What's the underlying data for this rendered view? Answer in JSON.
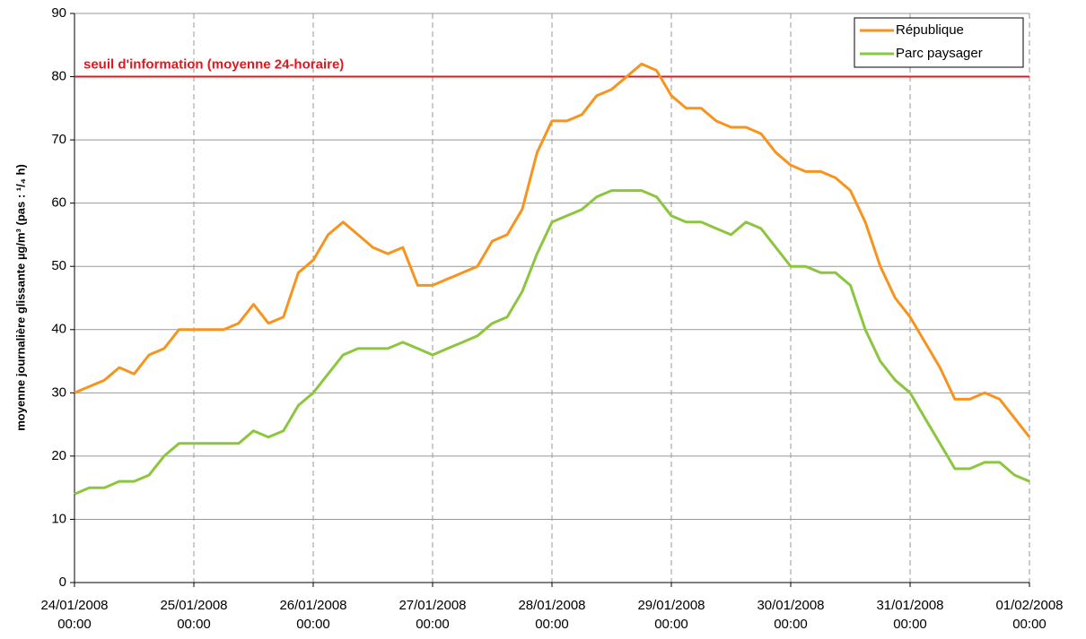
{
  "chart_data": {
    "type": "line",
    "y_label": "moyenne journalière glissante µg/m³ (pas : ¹/₄ h)",
    "annotation": {
      "text": "seuil d'information (moyenne 24-horaire)",
      "value": 80,
      "color": "#e8141c"
    },
    "x": [
      "2008-01-24 00:00",
      "2008-01-24 03:00",
      "2008-01-24 06:00",
      "2008-01-24 09:00",
      "2008-01-24 12:00",
      "2008-01-24 15:00",
      "2008-01-24 18:00",
      "2008-01-24 21:00",
      "2008-01-25 00:00",
      "2008-01-25 03:00",
      "2008-01-25 06:00",
      "2008-01-25 09:00",
      "2008-01-25 12:00",
      "2008-01-25 15:00",
      "2008-01-25 18:00",
      "2008-01-25 21:00",
      "2008-01-26 00:00",
      "2008-01-26 03:00",
      "2008-01-26 06:00",
      "2008-01-26 09:00",
      "2008-01-26 12:00",
      "2008-01-26 15:00",
      "2008-01-26 18:00",
      "2008-01-26 21:00",
      "2008-01-27 00:00",
      "2008-01-27 03:00",
      "2008-01-27 06:00",
      "2008-01-27 09:00",
      "2008-01-27 12:00",
      "2008-01-27 15:00",
      "2008-01-27 18:00",
      "2008-01-27 21:00",
      "2008-01-28 00:00",
      "2008-01-28 03:00",
      "2008-01-28 06:00",
      "2008-01-28 09:00",
      "2008-01-28 12:00",
      "2008-01-28 15:00",
      "2008-01-28 18:00",
      "2008-01-28 21:00",
      "2008-01-29 00:00",
      "2008-01-29 03:00",
      "2008-01-29 06:00",
      "2008-01-29 09:00",
      "2008-01-29 12:00",
      "2008-01-29 15:00",
      "2008-01-29 18:00",
      "2008-01-29 21:00",
      "2008-01-30 00:00",
      "2008-01-30 03:00",
      "2008-01-30 06:00",
      "2008-01-30 09:00",
      "2008-01-30 12:00",
      "2008-01-30 15:00",
      "2008-01-30 18:00",
      "2008-01-30 21:00",
      "2008-01-31 00:00",
      "2008-01-31 03:00",
      "2008-01-31 06:00",
      "2008-01-31 09:00",
      "2008-01-31 12:00",
      "2008-01-31 15:00",
      "2008-01-31 18:00",
      "2008-01-31 21:00",
      "2008-02-01 00:00"
    ],
    "series": [
      {
        "name": "République",
        "color": "#f7941d",
        "values": [
          30,
          31,
          32,
          34,
          33,
          36,
          37,
          40,
          40,
          40,
          40,
          41,
          44,
          41,
          42,
          49,
          51,
          55,
          57,
          55,
          53,
          52,
          53,
          47,
          47,
          48,
          49,
          50,
          54,
          55,
          59,
          68,
          73,
          73,
          74,
          77,
          78,
          80,
          82,
          81,
          77,
          75,
          75,
          73,
          72,
          72,
          71,
          68,
          66,
          65,
          65,
          64,
          62,
          57,
          50,
          45,
          42,
          38,
          34,
          29,
          29,
          30,
          29,
          26,
          23
        ]
      },
      {
        "name": "Parc paysager",
        "color": "#8cc63f",
        "values": [
          14,
          15,
          15,
          16,
          16,
          17,
          20,
          22,
          22,
          22,
          22,
          22,
          24,
          23,
          24,
          28,
          30,
          33,
          36,
          37,
          37,
          37,
          38,
          37,
          36,
          37,
          38,
          39,
          41,
          42,
          46,
          52,
          57,
          58,
          59,
          61,
          62,
          62,
          62,
          61,
          58,
          57,
          57,
          56,
          55,
          57,
          56,
          53,
          50,
          50,
          49,
          49,
          47,
          40,
          35,
          32,
          30,
          26,
          22,
          18,
          18,
          19,
          19,
          17,
          16
        ]
      }
    ],
    "xlim": [
      "2008-01-24 00:00",
      "2008-02-01 00:00"
    ],
    "xticks": [
      {
        "value": "2008-01-24 00:00",
        "label": "24/01/2008 00:00"
      },
      {
        "value": "2008-01-25 00:00",
        "label": "25/01/2008 00:00"
      },
      {
        "value": "2008-01-26 00:00",
        "label": "26/01/2008 00:00"
      },
      {
        "value": "2008-01-27 00:00",
        "label": "27/01/2008 00:00"
      },
      {
        "value": "2008-01-28 00:00",
        "label": "28/01/2008 00:00"
      },
      {
        "value": "2008-01-29 00:00",
        "label": "29/01/2008 00:00"
      },
      {
        "value": "2008-01-30 00:00",
        "label": "30/01/2008 00:00"
      },
      {
        "value": "2008-01-31 00:00",
        "label": "31/01/2008 00:00"
      },
      {
        "value": "2008-02-01 00:00",
        "label": "01/02/2008 00:00"
      }
    ],
    "ylim": [
      0,
      90
    ],
    "yticks": [
      0,
      10,
      20,
      30,
      40,
      50,
      60,
      70,
      80,
      90
    ],
    "grid": true,
    "legend": "top-right"
  }
}
